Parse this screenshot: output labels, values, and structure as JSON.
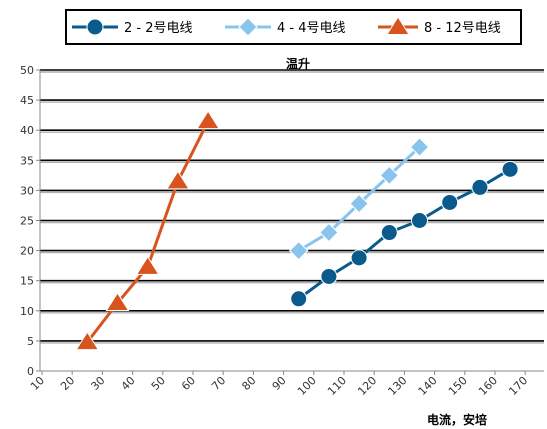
{
  "chart_data": {
    "type": "line",
    "title": "",
    "xlabel": "电流，安培",
    "ylabel": "温升",
    "xlim": [
      10,
      170
    ],
    "ylim": [
      0,
      50
    ],
    "x_ticks": [
      10,
      20,
      30,
      40,
      50,
      60,
      70,
      80,
      90,
      100,
      110,
      120,
      130,
      140,
      150,
      160,
      170
    ],
    "y_ticks": [
      0,
      5,
      10,
      15,
      20,
      25,
      30,
      35,
      40,
      45,
      50
    ],
    "grid": "horizontal",
    "legend_position": "top",
    "series": [
      {
        "name": "2 - 2号电线",
        "marker": "circle",
        "color": "#0a5b8c",
        "points": [
          [
            95,
            12
          ],
          [
            105,
            15.7
          ],
          [
            115,
            18.8
          ],
          [
            125,
            23
          ],
          [
            135,
            25
          ],
          [
            145,
            28
          ],
          [
            155,
            30.5
          ],
          [
            165,
            33.5
          ]
        ]
      },
      {
        "name": "4 - 4号电线",
        "marker": "diamond",
        "color": "#88c4ee",
        "points": [
          [
            95,
            20
          ],
          [
            105,
            23
          ],
          [
            115,
            27.8
          ],
          [
            125,
            32.5
          ],
          [
            135,
            37.2
          ]
        ]
      },
      {
        "name": "8 - 12号电线",
        "marker": "triangle",
        "color": "#d9531e",
        "points": [
          [
            25,
            4.8
          ],
          [
            35,
            11.3
          ],
          [
            45,
            17.3
          ],
          [
            55,
            31.5
          ],
          [
            65,
            41.5
          ]
        ]
      }
    ]
  }
}
